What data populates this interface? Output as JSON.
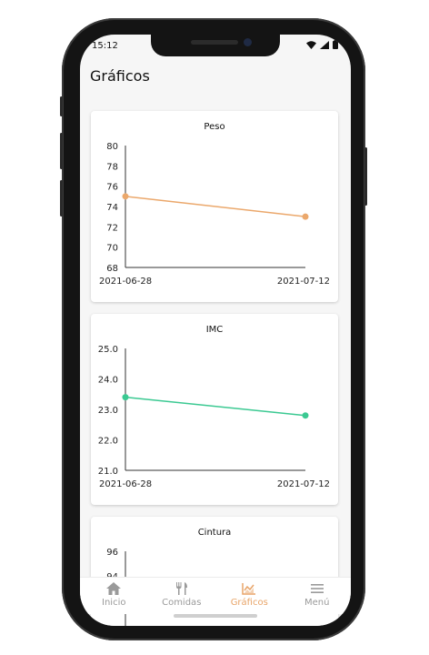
{
  "status_bar": {
    "time": "15:12"
  },
  "page": {
    "title": "Gráficos"
  },
  "colors": {
    "peso_line": "#eba86c",
    "imc_line": "#3bc992",
    "accent": "#e8a468"
  },
  "charts": [
    {
      "title": "Peso",
      "chart_data": {
        "type": "line",
        "title": "Peso",
        "x": [
          "2021-06-28",
          "2021-07-12"
        ],
        "series": [
          {
            "values": [
              75.0,
              73.0
            ]
          }
        ],
        "ylim": [
          68,
          80
        ],
        "yticks": [
          "80",
          "78",
          "76",
          "74",
          "72",
          "70",
          "68"
        ]
      }
    },
    {
      "title": "IMC",
      "chart_data": {
        "type": "line",
        "title": "IMC",
        "x": [
          "2021-06-28",
          "2021-07-12"
        ],
        "series": [
          {
            "values": [
              23.4,
              22.8
            ]
          }
        ],
        "ylim": [
          21.0,
          25.0
        ],
        "yticks": [
          "25.0",
          "24.0",
          "23.0",
          "22.0",
          "21.0"
        ]
      }
    },
    {
      "title": "Cintura",
      "chart_data": {
        "type": "line",
        "title": "Cintura",
        "visible_yticks": [
          "96",
          "94"
        ]
      }
    }
  ],
  "tabs": [
    {
      "label": "Inicio",
      "icon": "home-icon",
      "active": false
    },
    {
      "label": "Comidas",
      "icon": "cutlery-icon",
      "active": false
    },
    {
      "label": "Gráficos",
      "icon": "chart-icon",
      "active": true
    },
    {
      "label": "Menú",
      "icon": "menu-icon",
      "active": false
    }
  ]
}
